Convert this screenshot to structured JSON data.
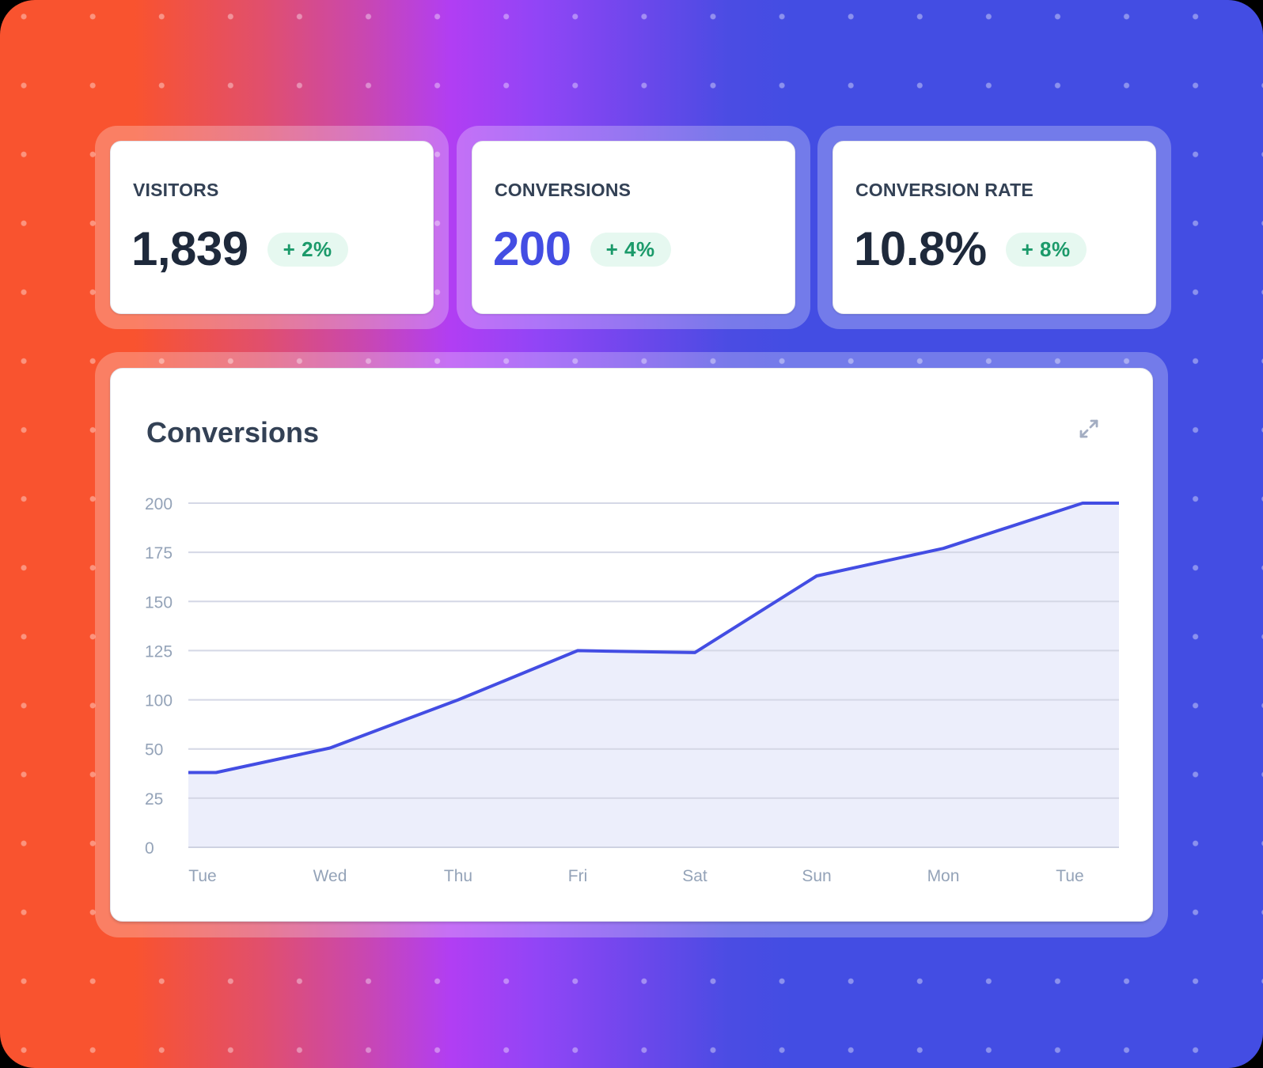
{
  "stats": [
    {
      "label": "VISITORS",
      "value": "1,839",
      "change": "+ 2%",
      "accent": false
    },
    {
      "label": "CONVERSIONS",
      "value": "200",
      "change": "+ 4%",
      "accent": true
    },
    {
      "label": "CONVERSION RATE",
      "value": "10.8%",
      "change": "+ 8%",
      "accent": false
    }
  ],
  "chart_card": {
    "title": "Conversions",
    "expand_icon": "expand-arrows-icon"
  },
  "colors": {
    "accent": "#434de3",
    "line": "#434de3",
    "area_fill": "#eaecfb",
    "positive_badge_bg": "#e6f8f0",
    "positive_badge_text": "#1b9a6a",
    "gradient": [
      "#f9532f",
      "#b13ef3",
      "#434de3"
    ]
  },
  "chart_data": {
    "type": "area",
    "title": "Conversions",
    "xlabel": "",
    "ylabel": "",
    "categories": [
      "Tue",
      "Wed",
      "Thu",
      "Fri",
      "Sat",
      "Sun",
      "Mon",
      "Tue"
    ],
    "series": [
      {
        "name": "Conversions",
        "values": [
          38,
          51,
          100,
          125,
          124,
          163,
          177,
          200
        ]
      }
    ],
    "y_tick_labels": [
      "200",
      "175",
      "150",
      "125",
      "100",
      "50",
      "25",
      "0"
    ],
    "ylim": [
      0,
      200
    ],
    "grid": true,
    "legend": "none"
  }
}
